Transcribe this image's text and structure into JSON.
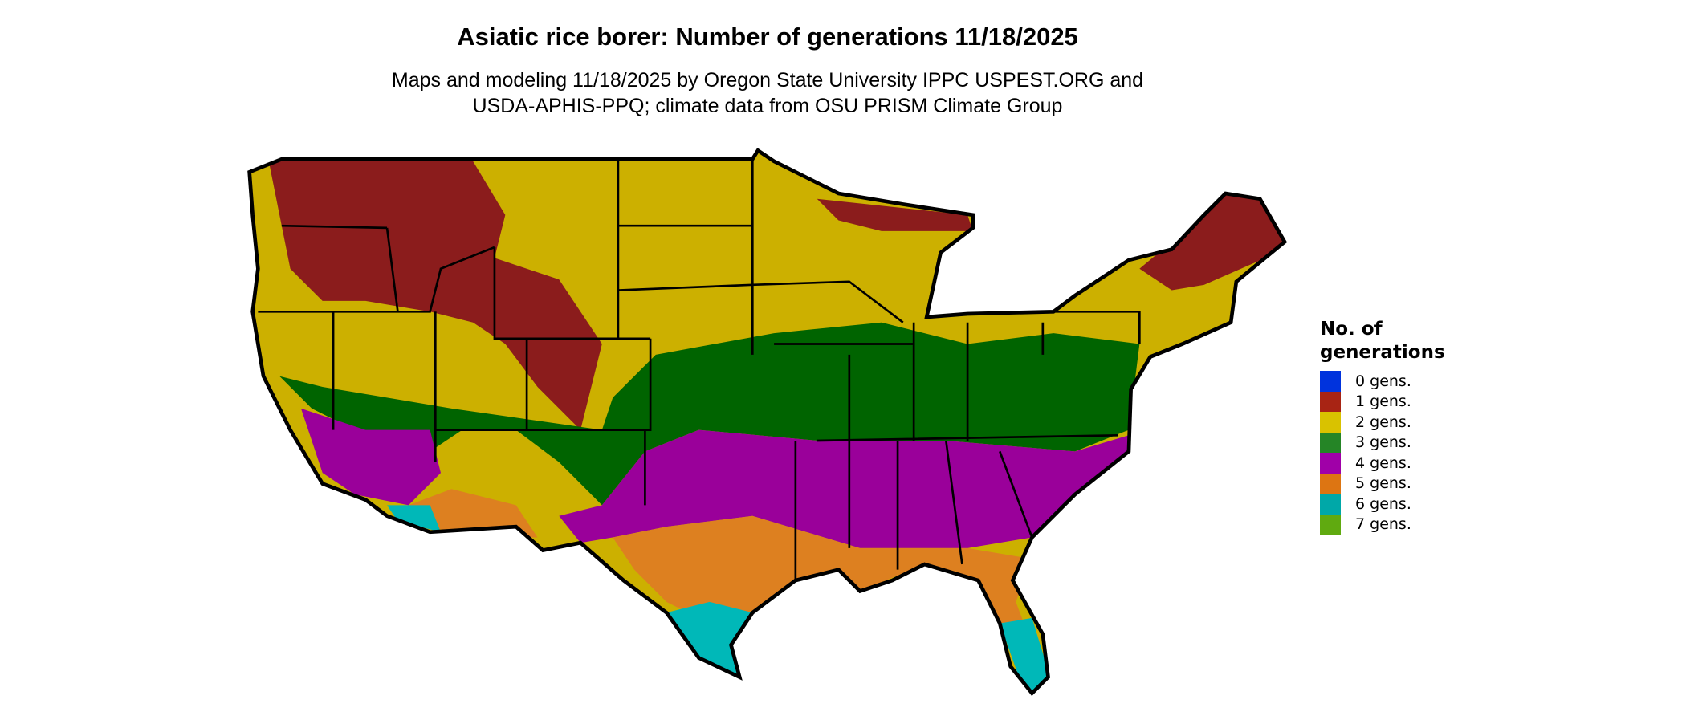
{
  "title": "Asiatic rice borer: Number of generations 11/18/2025",
  "subtitle_lines": [
    "Maps and modeling 11/18/2025 by Oregon State University IPPC USPEST.ORG and",
    "USDA-APHIS-PPQ; climate data from OSU PRISM Climate Group"
  ],
  "legend": {
    "title_lines": [
      "No. of",
      "generations"
    ],
    "items": [
      {
        "label": "0 gens.",
        "color": "#0033dd"
      },
      {
        "label": "1 gens.",
        "color": "#a82414"
      },
      {
        "label": "2 gens.",
        "color": "#d9c200"
      },
      {
        "label": "3 gens.",
        "color": "#258526"
      },
      {
        "label": "4 gens.",
        "color": "#a000a8"
      },
      {
        "label": "5 gens.",
        "color": "#dd7512"
      },
      {
        "label": "6 gens.",
        "color": "#00a8a8"
      },
      {
        "label": "7 gens.",
        "color": "#60aa10"
      }
    ]
  },
  "map_colors": {
    "gen1": "#8b1c1c",
    "gen2": "#ccb000",
    "gen3": "#006400",
    "gen4": "#9a009a",
    "gen4_light": "#e040e0",
    "gen5": "#dd8020",
    "gen6": "#00b8b8",
    "border": "#000000"
  }
}
